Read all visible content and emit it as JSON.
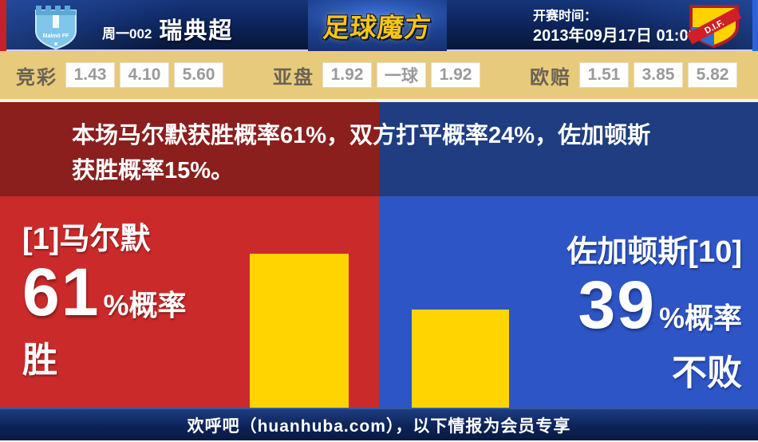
{
  "header": {
    "match_code": "周一002",
    "league": "瑞典超",
    "site_logo": "足球魔方",
    "kickoff_label": "开赛时间：",
    "kickoff_time": "2013年09月17日 01:05",
    "home_crest_text": "Malmö FF",
    "away_crest_text": "D.I.F."
  },
  "odds": {
    "groups": [
      {
        "label": "竞彩",
        "values": [
          "1.43",
          "4.10",
          "5.60"
        ]
      },
      {
        "label": "亚盘",
        "values": [
          "1.92",
          "一球",
          "1.92"
        ]
      },
      {
        "label": "欧赔",
        "values": [
          "1.51",
          "3.85",
          "5.82"
        ]
      }
    ]
  },
  "summary": {
    "line1": "本场马尔默获胜概率61%，双方打平概率24%，佐加顿斯",
    "line2": "获胜概率15%。"
  },
  "panels": {
    "home": {
      "name": "[1]马尔默",
      "probability": 61,
      "percent_label": "%概率",
      "outcome": "胜"
    },
    "away": {
      "name": "佐加顿斯[10]",
      "probability": 39,
      "percent_label": "%概率",
      "outcome": "不败"
    }
  },
  "footer": {
    "text": "欢呼吧（huanhuba.com），以下情报为会员专享"
  },
  "colors": {
    "header_navy": "#0c2257",
    "odds_gold": "#e7ca7b",
    "home_red": "#cb2a2a",
    "away_blue": "#2d55c6",
    "summary_dark_red": "#8a1f1e",
    "summary_dark_blue": "#1f3d80",
    "bar_yellow": "#ffd400",
    "logo_gold": "#f7c518"
  },
  "chart_data": {
    "type": "bar",
    "categories": [
      "马尔默 胜",
      "佐加顿斯 不败"
    ],
    "values": [
      61,
      39
    ],
    "unit": "%",
    "bar_color": "#ffd400",
    "probabilities": {
      "home_win": 61,
      "draw": 24,
      "away_win": 15
    }
  }
}
